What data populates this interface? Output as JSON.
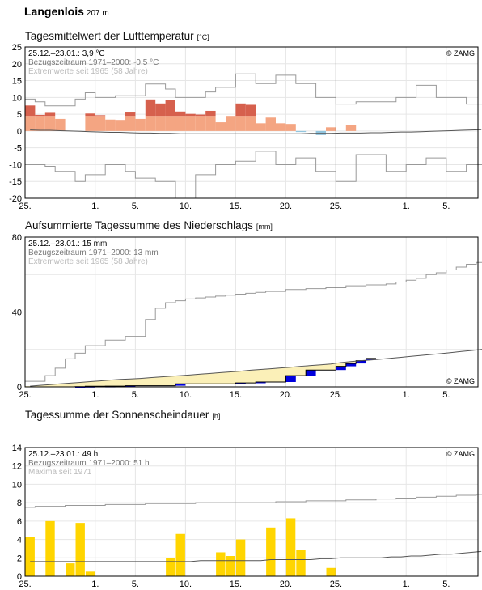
{
  "station": {
    "name": "Langenlois",
    "elevation": "207 m"
  },
  "x_tick_labels": [
    "25.",
    "1.",
    "5.",
    "10.",
    "15.",
    "20.",
    "25.",
    "1.",
    "5."
  ],
  "copyright": "© ZAMG",
  "chart_data": [
    {
      "type": "bar",
      "title": "Tagesmittelwert der Lufttemperatur",
      "unit": "[°C]",
      "ylim": [
        -20,
        25
      ],
      "yticks": [
        -20,
        -15,
        -10,
        -5,
        0,
        5,
        10,
        15,
        20,
        25
      ],
      "annotations": {
        "current": "25.12.–23.01.: 3,9 °C",
        "reference": "Bezugszeitraum 1971–2000: -0,5 °C",
        "extremes": "Extremwerte seit 1965 (58 Jahre)"
      },
      "days": 30,
      "values": [
        7.6,
        4.8,
        5.4,
        3.6,
        0,
        0,
        5.2,
        4.7,
        3.4,
        3.3,
        5.5,
        3.6,
        9.4,
        8.2,
        9.2,
        5.8,
        5.1,
        4.9,
        6.0,
        2.6,
        4.5,
        8.2,
        7.8,
        2.3,
        4.0,
        2.3,
        2.1,
        -0.3,
        0,
        -1.2,
        1.1,
        0,
        1.7
      ],
      "normal": [
        0.3,
        0.2,
        0.2,
        0.1,
        0.0,
        -0.1,
        -0.2,
        -0.3,
        -0.4,
        -0.4,
        -0.5,
        -0.6,
        -0.6,
        -0.7,
        -0.7,
        -0.8,
        -0.8,
        -0.8,
        -0.8,
        -0.8,
        -0.8,
        -0.8,
        -0.8,
        -0.8,
        -0.8,
        -0.8,
        -0.8,
        -0.8,
        -0.7,
        -0.7,
        -0.7,
        -0.6,
        -0.6,
        -0.6,
        -0.5,
        -0.5,
        -0.4,
        -0.3,
        -0.3,
        -0.2,
        -0.1,
        0.0,
        0.1,
        0.2,
        0.3,
        0.4
      ],
      "max_extreme": [
        9.5,
        8.7,
        7.5,
        7.5,
        7.5,
        9.5,
        11.4,
        10.0,
        10.0,
        10.5,
        10.5,
        10.5,
        14.0,
        14.0,
        12.5,
        10.0,
        10.0,
        10.0,
        11.6,
        13.0,
        13.0,
        17.0,
        17.0,
        14.1,
        14.1,
        16.6,
        16.6,
        14.1,
        14.1,
        10.0,
        10.0,
        8.0,
        8.0,
        8.7,
        8.7,
        8.7,
        8.7,
        10.0,
        10.0,
        13.6,
        13.6,
        10.0,
        10.0,
        10.0,
        8.0,
        8.0
      ],
      "min_extreme": [
        -10.0,
        -10.0,
        -10.5,
        -12.0,
        -12.0,
        -15.0,
        -13.0,
        -13.0,
        -10.0,
        -10.0,
        -12.0,
        -14.0,
        -14.0,
        -15.0,
        -15.0,
        -20.0,
        -20.0,
        -13.0,
        -13.0,
        -10.0,
        -10.0,
        -9.0,
        -9.0,
        -6.0,
        -6.0,
        -10.0,
        -10.0,
        -8.0,
        -8.0,
        -12.0,
        -12.0,
        -15.0,
        -15.0,
        -7.0,
        -7.0,
        -7.0,
        -12.0,
        -12.0,
        -10.0,
        -10.0,
        -8.0,
        -8.0,
        -12.0,
        -12.0,
        -10.0,
        -10.0
      ]
    },
    {
      "type": "area",
      "title": "Aufsummierte Tagessumme des Niederschlags",
      "unit": "[mm]",
      "ylim": [
        0,
        80
      ],
      "yticks": [
        0,
        40,
        80
      ],
      "annotations": {
        "current": "25.12.–23.01.: 15 mm",
        "reference": "Bezugszeitraum 1971–2000: 13 mm",
        "extremes": "Extremwerte seit 1965 (58 Jahre)"
      },
      "days": 30,
      "actual": [
        0,
        0,
        0,
        0,
        0,
        0.1,
        0.3,
        0.3,
        0.4,
        0.4,
        0.6,
        0.6,
        0.6,
        0.6,
        0.6,
        1.6,
        1.6,
        1.6,
        1.6,
        1.6,
        1.6,
        2.1,
        2.1,
        2.6,
        2.6,
        2.6,
        6.0,
        6.0,
        9.0,
        9.0,
        9.0,
        11.0,
        12.5,
        14.0,
        15.2
      ],
      "normal": [
        0.4,
        0.8,
        1.2,
        1.6,
        2.0,
        2.4,
        2.8,
        3.2,
        3.6,
        4.0,
        4.2,
        4.5,
        4.9,
        5.3,
        5.7,
        6.0,
        6.4,
        6.8,
        7.2,
        7.6,
        8.0,
        8.4,
        8.9,
        9.3,
        9.7,
        10.1,
        10.5,
        11.0,
        11.4,
        11.8,
        12.2,
        13.0,
        13.5,
        14.0,
        14.4,
        14.8,
        15.3,
        15.8,
        16.3,
        16.8,
        17.3,
        17.8,
        18.3,
        18.9,
        19.4,
        20.0,
        20.5,
        21.0
      ],
      "max_extreme": [
        3.0,
        3.0,
        6.0,
        10.0,
        15.0,
        18.0,
        22.0,
        22.0,
        25.0,
        25.0,
        27.0,
        27.0,
        36.0,
        42.0,
        45.0,
        46.0,
        47.0,
        47.5,
        48.0,
        48.5,
        49.0,
        49.5,
        50.0,
        50.5,
        51.0,
        51.0,
        52.0,
        52.0,
        52.5,
        52.5,
        53.0,
        53.0,
        54.0,
        54.0,
        54.5,
        54.5,
        55.0,
        56.0,
        57.0,
        58.0,
        60.0,
        61.0,
        62.5,
        64.0,
        65.5,
        66.5
      ]
    },
    {
      "type": "bar",
      "title": "Tagessumme der Sonnenscheindauer",
      "unit": "[h]",
      "ylim": [
        0,
        14
      ],
      "yticks": [
        0,
        2,
        4,
        6,
        8,
        10,
        12,
        14
      ],
      "annotations": {
        "current": "25.12.–23.01.: 49 h",
        "reference": "Bezugszeitraum 1971–2000: 51 h",
        "extremes": "Maxima seit 1971"
      },
      "days": 30,
      "values": [
        4.3,
        0,
        6.0,
        0,
        1.4,
        5.8,
        0.5,
        0,
        0,
        0,
        0,
        0,
        0,
        0,
        2.0,
        4.6,
        0,
        0,
        0,
        2.6,
        2.2,
        4.0,
        0,
        0,
        5.3,
        0,
        6.3,
        2.9,
        0,
        0,
        0.9,
        0,
        0
      ],
      "normal": [
        1.6,
        1.6,
        1.6,
        1.6,
        1.6,
        1.6,
        1.6,
        1.6,
        1.6,
        1.6,
        1.6,
        1.6,
        1.6,
        1.6,
        1.6,
        1.6,
        1.6,
        1.7,
        1.7,
        1.7,
        1.7,
        1.7,
        1.7,
        1.7,
        1.8,
        1.8,
        1.8,
        1.8,
        1.8,
        1.9,
        1.9,
        2.0,
        2.0,
        2.0,
        2.0,
        2.0,
        2.1,
        2.1,
        2.2,
        2.2,
        2.3,
        2.4,
        2.4,
        2.5,
        2.6,
        2.7
      ],
      "max_extreme": [
        7.5,
        7.6,
        7.6,
        7.6,
        7.7,
        7.7,
        7.7,
        7.7,
        7.8,
        7.8,
        7.8,
        7.8,
        7.9,
        7.9,
        7.9,
        7.9,
        7.9,
        8.0,
        8.0,
        8.0,
        8.0,
        8.0,
        8.0,
        8.0,
        8.0,
        8.1,
        8.1,
        8.1,
        8.2,
        8.2,
        8.2,
        8.2,
        8.3,
        8.3,
        8.3,
        8.4,
        8.4,
        8.5,
        8.5,
        8.6,
        8.6,
        8.7,
        8.7,
        8.8,
        8.8,
        8.9
      ]
    }
  ]
}
